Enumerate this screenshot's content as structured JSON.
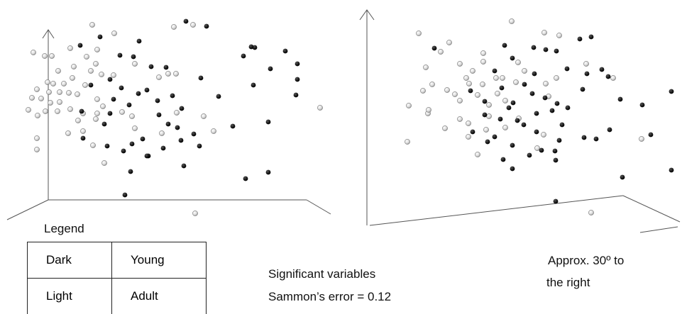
{
  "legend": {
    "title": "Legend",
    "rows": [
      {
        "color": "Dark",
        "group": "Young"
      },
      {
        "color": "Light",
        "group": "Adult"
      }
    ]
  },
  "captions": {
    "significant": "Significant variables",
    "sammon": "Sammon’s error = 0.12",
    "approx_line1": "Approx. 30º to",
    "approx_line2": "the right"
  },
  "colors": {
    "dark": "#111111",
    "light": "#cfcfcf",
    "light_stroke": "#7a7a7a",
    "axis": "#555555"
  },
  "chart_data": [
    {
      "type": "scatter",
      "title": "",
      "xlabel": "",
      "ylabel": "",
      "grid": false,
      "series": [
        {
          "name": "Dark",
          "values": [
            [
              262,
              30
            ],
            [
              291,
              37
            ],
            [
              141,
              52
            ],
            [
              196,
              58
            ],
            [
              113,
              64
            ],
            [
              169,
              78
            ],
            [
              343,
              79
            ],
            [
              213,
              94
            ],
            [
              234,
              95
            ],
            [
              283,
              110
            ],
            [
              155,
              112
            ],
            [
              357,
              120
            ],
            [
              419,
              112
            ],
            [
              128,
              120
            ],
            [
              171,
              124
            ],
            [
              207,
              127
            ],
            [
              195,
              132
            ],
            [
              308,
              136
            ],
            [
              160,
              140
            ],
            [
              243,
              135
            ],
            [
              222,
              142
            ],
            [
              182,
              148
            ],
            [
              256,
              153
            ],
            [
              115,
              157
            ],
            [
              155,
              160
            ],
            [
              224,
              162
            ],
            [
              237,
              175
            ],
            [
              250,
              180
            ],
            [
              328,
              178
            ],
            [
              378,
              172
            ],
            [
              147,
              175
            ],
            [
              273,
              189
            ],
            [
              201,
              196
            ],
            [
              117,
              195
            ],
            [
              186,
              203
            ],
            [
              151,
              206
            ],
            [
              255,
              198
            ],
            [
              230,
              209
            ],
            [
              281,
              206
            ],
            [
              174,
              213
            ],
            [
              209,
              220
            ],
            [
              259,
              234
            ],
            [
              184,
              242
            ],
            [
              346,
              252
            ],
            [
              378,
              243
            ],
            [
              176,
              275
            ],
            [
              359,
              67
            ],
            [
              402,
              72
            ],
            [
              381,
              97
            ],
            [
              419,
              90
            ],
            [
              417,
              134
            ],
            [
              354,
              66
            ],
            [
              188,
              80
            ],
            [
              207,
              220
            ]
          ]
        },
        {
          "name": "Light",
          "values": [
            [
              245,
              38
            ],
            [
              272,
              35
            ],
            [
              130,
              35
            ],
            [
              161,
              47
            ],
            [
              137,
              70
            ],
            [
              99,
              68
            ],
            [
              73,
              79
            ],
            [
              63,
              79
            ],
            [
              47,
              74
            ],
            [
              122,
              80
            ],
            [
              135,
              90
            ],
            [
              190,
              90
            ],
            [
              104,
              94
            ],
            [
              82,
              100
            ],
            [
              128,
              100
            ],
            [
              224,
              109
            ],
            [
              237,
              104
            ],
            [
              248,
              104
            ],
            [
              143,
              105
            ],
            [
              160,
              106
            ],
            [
              102,
              110
            ],
            [
              67,
              116
            ],
            [
              75,
              118
            ],
            [
              90,
              118
            ],
            [
              120,
              120
            ],
            [
              52,
              126
            ],
            [
              69,
              130
            ],
            [
              84,
              130
            ],
            [
              97,
              131
            ],
            [
              109,
              133
            ],
            [
              45,
              138
            ],
            [
              58,
              139
            ],
            [
              71,
              145
            ],
            [
              84,
              144
            ],
            [
              137,
              140
            ],
            [
              40,
              155
            ],
            [
              64,
              157
            ],
            [
              81,
              157
            ],
            [
              99,
              154
            ],
            [
              117,
              160
            ],
            [
              172,
              158
            ],
            [
              186,
              164
            ],
            [
              53,
              163
            ],
            [
              110,
              170
            ],
            [
              135,
              168
            ],
            [
              96,
              188
            ],
            [
              117,
              185
            ],
            [
              228,
              188
            ],
            [
              301,
              185
            ],
            [
              52,
              195
            ],
            [
              52,
              211
            ],
            [
              131,
              205
            ],
            [
              147,
              230
            ],
            [
              275,
              301
            ],
            [
              451,
              152
            ],
            [
              287,
              164
            ],
            [
              249,
              159
            ],
            [
              190,
              181
            ],
            [
              145,
              150
            ],
            [
              137,
              160
            ]
          ]
        }
      ]
    },
    {
      "type": "scatter",
      "title": "",
      "xlabel": "",
      "ylabel": "",
      "grid": false,
      "series": [
        {
          "name": "Dark",
          "values": [
            [
              817,
              55
            ],
            [
              833,
              52
            ],
            [
              769,
              70
            ],
            [
              711,
              64
            ],
            [
              752,
              67
            ],
            [
              612,
              68
            ],
            [
              722,
              82
            ],
            [
              799,
              97
            ],
            [
              697,
              100
            ],
            [
              753,
              104
            ],
            [
              857,
              108
            ],
            [
              739,
              119
            ],
            [
              821,
              126
            ],
            [
              707,
              124
            ],
            [
              663,
              128
            ],
            [
              768,
              138
            ],
            [
              750,
              132
            ],
            [
              874,
              140
            ],
            [
              723,
              145
            ],
            [
              683,
              143
            ],
            [
              800,
              152
            ],
            [
              785,
              146
            ],
            [
              905,
              148
            ],
            [
              717,
              152
            ],
            [
              683,
              162
            ],
            [
              756,
              160
            ],
            [
              729,
              170
            ],
            [
              738,
              176
            ],
            [
              792,
              176
            ],
            [
              823,
              194
            ],
            [
              756,
              186
            ],
            [
              666,
              186
            ],
            [
              697,
              193
            ],
            [
              788,
              198
            ],
            [
              722,
              205
            ],
            [
              687,
              200
            ],
            [
              763,
              212
            ],
            [
              840,
              196
            ],
            [
              917,
              190
            ],
            [
              782,
              213
            ],
            [
              859,
              183
            ],
            [
              746,
              219
            ],
            [
              783,
              226
            ],
            [
              709,
              225
            ],
            [
              722,
              238
            ],
            [
              877,
              250
            ],
            [
              946,
              240
            ],
            [
              783,
              284
            ],
            [
              827,
              104
            ],
            [
              848,
              98
            ],
            [
              946,
              129
            ],
            [
              784,
              72
            ],
            [
              778,
              156
            ],
            [
              705,
              168
            ]
          ]
        },
        {
          "name": "Light",
          "values": [
            [
              721,
              30
            ],
            [
              767,
              46
            ],
            [
              788,
              50
            ],
            [
              590,
              47
            ],
            [
              633,
              60
            ],
            [
              621,
              73
            ],
            [
              681,
              75
            ],
            [
              681,
              87
            ],
            [
              730,
              88
            ],
            [
              739,
              100
            ],
            [
              648,
              90
            ],
            [
              600,
              95
            ],
            [
              666,
              100
            ],
            [
              657,
              110
            ],
            [
              699,
              110
            ],
            [
              727,
              116
            ],
            [
              609,
              119
            ],
            [
              630,
              127
            ],
            [
              661,
              118
            ],
            [
              680,
              119
            ],
            [
              596,
              128
            ],
            [
              641,
              133
            ],
            [
              673,
              134
            ],
            [
              773,
              136
            ],
            [
              701,
              132
            ],
            [
              576,
              149
            ],
            [
              603,
              160
            ],
            [
              648,
              142
            ],
            [
              689,
              148
            ],
            [
              712,
              142
            ],
            [
              784,
              110
            ],
            [
              826,
              90
            ],
            [
              604,
              155
            ],
            [
              648,
              168
            ],
            [
              660,
              174
            ],
            [
              689,
              164
            ],
            [
              731,
              167
            ],
            [
              627,
              181
            ],
            [
              685,
              183
            ],
            [
              660,
              193
            ],
            [
              766,
              190
            ],
            [
              574,
              200
            ],
            [
              757,
              209
            ],
            [
              673,
              218
            ],
            [
              833,
              300
            ],
            [
              904,
              196
            ],
            [
              864,
              110
            ],
            [
              769,
              118
            ],
            [
              708,
              110
            ],
            [
              712,
              180
            ]
          ]
        }
      ]
    }
  ]
}
